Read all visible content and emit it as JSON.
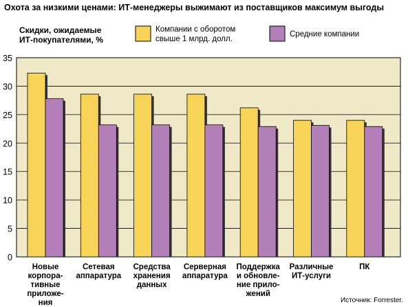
{
  "chart_data": {
    "type": "bar",
    "title": "Охота за низкими ценами: ИТ-менеджеры выжимают из поставщиков максимум выгоды",
    "ylabel_lines": [
      "Скидки, ожидаемые",
      "ИТ-покупателями, %"
    ],
    "source": "Источник: Forrester.",
    "categories": [
      [
        "Новые",
        "корпора-",
        "тивные",
        "приложе-",
        "ния"
      ],
      [
        "Сетевая",
        "аппаратура"
      ],
      [
        "Средства",
        "хранения",
        "данных"
      ],
      [
        "Серверная",
        "аппаратура"
      ],
      [
        "Поддержка",
        "и обновле-",
        "ние прило-",
        "жений"
      ],
      [
        "Различные",
        "ИТ-услуги"
      ],
      [
        "ПК"
      ]
    ],
    "series": [
      {
        "name_lines": [
          "Компании с оборотом",
          "свыше 1 млрд. долл."
        ],
        "color": "#f7d358",
        "values": [
          32.3,
          28.6,
          28.6,
          28.6,
          26.2,
          24.0,
          24.0
        ]
      },
      {
        "name_lines": [
          "Средние компании"
        ],
        "color": "#b27fb8",
        "values": [
          27.8,
          23.2,
          23.2,
          23.2,
          22.9,
          23.1,
          22.9
        ]
      }
    ],
    "yticks": [
      "35",
      "30",
      "25",
      "20",
      "15",
      "10",
      "5",
      "0"
    ],
    "ytick_values": [
      35,
      30,
      25,
      20,
      15,
      10,
      5,
      0
    ],
    "ylim": [
      0,
      35
    ],
    "grid": true,
    "plot_background": "#f0e9c7",
    "legend_position": "top"
  }
}
